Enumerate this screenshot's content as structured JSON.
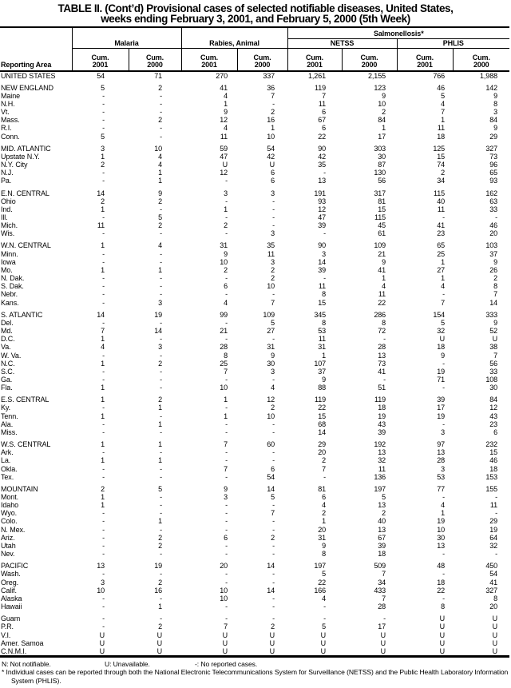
{
  "title": {
    "line1": "TABLE II. (Cont’d) Provisional cases of selected notifiable diseases, United States,",
    "line2": "weeks ending February 3, 2001, and February 5, 2000 (5th Week)"
  },
  "table": {
    "header": {
      "reporting_area": "Reporting Area",
      "groups": {
        "malaria": "Malaria",
        "rabies": "Rabies, Animal",
        "salmonellosis": "Salmonellosis*",
        "netss": "NETSS",
        "phlis": "PHLIS"
      },
      "cum": "Cum.",
      "y2001": "2001",
      "y2000": "2000"
    },
    "body": {
      "groups": [
        [
          {
            "area": "UNITED STATES",
            "v": [
              "54",
              "71",
              "270",
              "337",
              "1,261",
              "2,155",
              "766",
              "1,988"
            ]
          }
        ],
        [
          {
            "area": "NEW ENGLAND",
            "v": [
              "5",
              "2",
              "41",
              "36",
              "119",
              "123",
              "46",
              "142"
            ]
          },
          {
            "area": "Maine",
            "v": [
              "-",
              "-",
              "4",
              "7",
              "7",
              "9",
              "5",
              "9"
            ]
          },
          {
            "area": "N.H.",
            "v": [
              "-",
              "-",
              "1",
              "-",
              "11",
              "10",
              "4",
              "8"
            ]
          },
          {
            "area": "Vt.",
            "v": [
              "-",
              "-",
              "9",
              "2",
              "6",
              "2",
              "7",
              "3"
            ]
          },
          {
            "area": "Mass.",
            "v": [
              "-",
              "2",
              "12",
              "16",
              "67",
              "84",
              "1",
              "84"
            ]
          },
          {
            "area": "R.I.",
            "v": [
              "-",
              "-",
              "4",
              "1",
              "6",
              "1",
              "11",
              "9"
            ]
          },
          {
            "area": "Conn.",
            "v": [
              "5",
              "-",
              "11",
              "10",
              "22",
              "17",
              "18",
              "29"
            ]
          }
        ],
        [
          {
            "area": "MID. ATLANTIC",
            "v": [
              "3",
              "10",
              "59",
              "54",
              "90",
              "303",
              "125",
              "327"
            ]
          },
          {
            "area": "Upstate N.Y.",
            "v": [
              "1",
              "4",
              "47",
              "42",
              "42",
              "30",
              "15",
              "73"
            ]
          },
          {
            "area": "N.Y. City",
            "v": [
              "2",
              "4",
              "U",
              "U",
              "35",
              "87",
              "74",
              "96"
            ]
          },
          {
            "area": "N.J.",
            "v": [
              "-",
              "1",
              "12",
              "6",
              "-",
              "130",
              "2",
              "65"
            ]
          },
          {
            "area": "Pa.",
            "v": [
              "-",
              "1",
              "-",
              "6",
              "13",
              "56",
              "34",
              "93"
            ]
          }
        ],
        [
          {
            "area": "E.N. CENTRAL",
            "v": [
              "14",
              "9",
              "3",
              "3",
              "191",
              "317",
              "115",
              "162"
            ]
          },
          {
            "area": "Ohio",
            "v": [
              "2",
              "2",
              "-",
              "-",
              "93",
              "81",
              "40",
              "63"
            ]
          },
          {
            "area": "Ind.",
            "v": [
              "1",
              "-",
              "1",
              "-",
              "12",
              "15",
              "11",
              "33"
            ]
          },
          {
            "area": "Ill.",
            "v": [
              "-",
              "5",
              "-",
              "-",
              "47",
              "115",
              "-",
              "-"
            ]
          },
          {
            "area": "Mich.",
            "v": [
              "11",
              "2",
              "2",
              "-",
              "39",
              "45",
              "41",
              "46"
            ]
          },
          {
            "area": "Wis.",
            "v": [
              "-",
              "-",
              "-",
              "3",
              "-",
              "61",
              "23",
              "20"
            ]
          }
        ],
        [
          {
            "area": "W.N. CENTRAL",
            "v": [
              "1",
              "4",
              "31",
              "35",
              "90",
              "109",
              "65",
              "103"
            ]
          },
          {
            "area": "Minn.",
            "v": [
              "-",
              "-",
              "9",
              "11",
              "3",
              "21",
              "25",
              "37"
            ]
          },
          {
            "area": "Iowa",
            "v": [
              "-",
              "-",
              "10",
              "3",
              "14",
              "9",
              "1",
              "9"
            ]
          },
          {
            "area": "Mo.",
            "v": [
              "1",
              "1",
              "2",
              "2",
              "39",
              "41",
              "27",
              "26"
            ]
          },
          {
            "area": "N. Dak.",
            "v": [
              "-",
              "-",
              "-",
              "2",
              "-",
              "1",
              "1",
              "2"
            ]
          },
          {
            "area": "S. Dak.",
            "v": [
              "-",
              "-",
              "6",
              "10",
              "11",
              "4",
              "4",
              "8"
            ]
          },
          {
            "area": "Nebr.",
            "v": [
              "-",
              "-",
              "-",
              "-",
              "8",
              "11",
              "-",
              "7"
            ]
          },
          {
            "area": "Kans.",
            "v": [
              "-",
              "3",
              "4",
              "7",
              "15",
              "22",
              "7",
              "14"
            ]
          }
        ],
        [
          {
            "area": "S. ATLANTIC",
            "v": [
              "14",
              "19",
              "99",
              "109",
              "345",
              "286",
              "154",
              "333"
            ]
          },
          {
            "area": "Del.",
            "v": [
              "-",
              "-",
              "-",
              "5",
              "8",
              "8",
              "5",
              "9"
            ]
          },
          {
            "area": "Md.",
            "v": [
              "7",
              "14",
              "21",
              "27",
              "53",
              "72",
              "32",
              "52"
            ]
          },
          {
            "area": "D.C.",
            "v": [
              "1",
              "-",
              "-",
              "-",
              "11",
              "-",
              "U",
              "U"
            ]
          },
          {
            "area": "Va.",
            "v": [
              "4",
              "3",
              "28",
              "31",
              "31",
              "28",
              "18",
              "38"
            ]
          },
          {
            "area": "W. Va.",
            "v": [
              "-",
              "-",
              "8",
              "9",
              "1",
              "13",
              "9",
              "7"
            ]
          },
          {
            "area": "N.C.",
            "v": [
              "1",
              "2",
              "25",
              "30",
              "107",
              "73",
              "-",
              "56"
            ]
          },
          {
            "area": "S.C.",
            "v": [
              "-",
              "-",
              "7",
              "3",
              "37",
              "41",
              "19",
              "33"
            ]
          },
          {
            "area": "Ga.",
            "v": [
              "-",
              "-",
              "-",
              "-",
              "9",
              "-",
              "71",
              "108"
            ]
          },
          {
            "area": "Fla.",
            "v": [
              "1",
              "-",
              "10",
              "4",
              "88",
              "51",
              "-",
              "30"
            ]
          }
        ],
        [
          {
            "area": "E.S. CENTRAL",
            "v": [
              "1",
              "2",
              "1",
              "12",
              "119",
              "119",
              "39",
              "84"
            ]
          },
          {
            "area": "Ky.",
            "v": [
              "-",
              "1",
              "-",
              "2",
              "22",
              "18",
              "17",
              "12"
            ]
          },
          {
            "area": "Tenn.",
            "v": [
              "1",
              "-",
              "1",
              "10",
              "15",
              "19",
              "19",
              "43"
            ]
          },
          {
            "area": "Ala.",
            "v": [
              "-",
              "1",
              "-",
              "-",
              "68",
              "43",
              "-",
              "23"
            ]
          },
          {
            "area": "Miss.",
            "v": [
              "-",
              "-",
              "-",
              "-",
              "14",
              "39",
              "3",
              "6"
            ]
          }
        ],
        [
          {
            "area": "W.S. CENTRAL",
            "v": [
              "1",
              "1",
              "7",
              "60",
              "29",
              "192",
              "97",
              "232"
            ]
          },
          {
            "area": "Ark.",
            "v": [
              "-",
              "-",
              "-",
              "-",
              "20",
              "13",
              "13",
              "15"
            ]
          },
          {
            "area": "La.",
            "v": [
              "1",
              "1",
              "-",
              "-",
              "2",
              "32",
              "28",
              "46"
            ]
          },
          {
            "area": "Okla.",
            "v": [
              "-",
              "-",
              "7",
              "6",
              "7",
              "11",
              "3",
              "18"
            ]
          },
          {
            "area": "Tex.",
            "v": [
              "-",
              "-",
              "-",
              "54",
              "-",
              "136",
              "53",
              "153"
            ]
          }
        ],
        [
          {
            "area": "MOUNTAIN",
            "v": [
              "2",
              "5",
              "9",
              "14",
              "81",
              "197",
              "77",
              "155"
            ]
          },
          {
            "area": "Mont.",
            "v": [
              "1",
              "-",
              "3",
              "5",
              "6",
              "5",
              "-",
              "-"
            ]
          },
          {
            "area": "Idaho",
            "v": [
              "1",
              "-",
              "-",
              "-",
              "4",
              "13",
              "4",
              "11"
            ]
          },
          {
            "area": "Wyo.",
            "v": [
              "-",
              "-",
              "-",
              "7",
              "2",
              "2",
              "1",
              "-"
            ]
          },
          {
            "area": "Colo.",
            "v": [
              "-",
              "1",
              "-",
              "-",
              "1",
              "40",
              "19",
              "29"
            ]
          },
          {
            "area": "N. Mex.",
            "v": [
              "-",
              "-",
              "-",
              "-",
              "20",
              "13",
              "10",
              "19"
            ]
          },
          {
            "area": "Ariz.",
            "v": [
              "-",
              "2",
              "6",
              "2",
              "31",
              "67",
              "30",
              "64"
            ]
          },
          {
            "area": "Utah",
            "v": [
              "-",
              "2",
              "-",
              "-",
              "9",
              "39",
              "13",
              "32"
            ]
          },
          {
            "area": "Nev.",
            "v": [
              "-",
              "-",
              "-",
              "-",
              "8",
              "18",
              "-",
              "-"
            ]
          }
        ],
        [
          {
            "area": "PACIFIC",
            "v": [
              "13",
              "19",
              "20",
              "14",
              "197",
              "509",
              "48",
              "450"
            ]
          },
          {
            "area": "Wash.",
            "v": [
              "-",
              "-",
              "-",
              "-",
              "5",
              "7",
              "-",
              "54"
            ]
          },
          {
            "area": "Oreg.",
            "v": [
              "3",
              "2",
              "-",
              "-",
              "22",
              "34",
              "18",
              "41"
            ]
          },
          {
            "area": "Calif.",
            "v": [
              "10",
              "16",
              "10",
              "14",
              "166",
              "433",
              "22",
              "327"
            ]
          },
          {
            "area": "Alaska",
            "v": [
              "-",
              "-",
              "10",
              "-",
              "4",
              "7",
              "-",
              "8"
            ]
          },
          {
            "area": "Hawaii",
            "v": [
              "-",
              "1",
              "-",
              "-",
              "-",
              "28",
              "8",
              "20"
            ]
          }
        ],
        [
          {
            "area": "Guam",
            "v": [
              "-",
              "-",
              "-",
              "-",
              "-",
              "-",
              "U",
              "U"
            ]
          },
          {
            "area": "P.R.",
            "v": [
              "-",
              "2",
              "7",
              "2",
              "5",
              "17",
              "U",
              "U"
            ]
          },
          {
            "area": "V.I.",
            "v": [
              "U",
              "U",
              "U",
              "U",
              "U",
              "U",
              "U",
              "U"
            ]
          },
          {
            "area": "Amer. Samoa",
            "v": [
              "U",
              "U",
              "U",
              "U",
              "U",
              "U",
              "U",
              "U"
            ]
          },
          {
            "area": "C.N.M.I.",
            "v": [
              "U",
              "U",
              "U",
              "U",
              "U",
              "U",
              "U",
              "U"
            ]
          }
        ]
      ]
    }
  },
  "footnotes": {
    "n": "N: Not notifiable.",
    "u": "U: Unavailable.",
    "dash": "-: No reported cases.",
    "star_symbol": "*",
    "star_text": "Individual cases can be reported through both the National Electronic Telecommunications System for Surveillance (NETSS) and the Public Health Laboratory Information System (PHLIS)."
  }
}
